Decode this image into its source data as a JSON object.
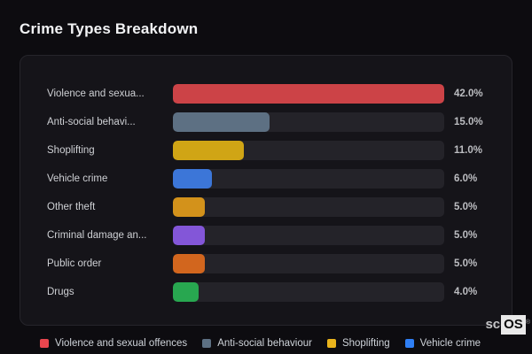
{
  "header": {
    "title": "Crime Types Breakdown"
  },
  "chart_data": {
    "type": "bar",
    "orientation": "horizontal",
    "title": "Crime Types Breakdown",
    "unit": "%",
    "xlim": [
      0,
      42
    ],
    "max_value": 42.0,
    "grid": false,
    "legend_position": "bottom",
    "categories": [
      "Violence and sexua...",
      "Anti-social behavi...",
      "Shoplifting",
      "Vehicle crime",
      "Other theft",
      "Criminal damage an...",
      "Public order",
      "Drugs"
    ],
    "values": [
      42.0,
      15.0,
      11.0,
      6.0,
      5.0,
      5.0,
      5.0,
      4.0
    ],
    "rows": [
      {
        "label": "Violence and sexua...",
        "value": 42.0,
        "display": "42.0%",
        "color": "#cc4347"
      },
      {
        "label": "Anti-social behavi...",
        "value": 15.0,
        "display": "15.0%",
        "color": "#5d7083"
      },
      {
        "label": "Shoplifting",
        "value": 11.0,
        "display": "11.0%",
        "color": "#d0a515"
      },
      {
        "label": "Vehicle crime",
        "value": 6.0,
        "display": "6.0%",
        "color": "#3c76d8"
      },
      {
        "label": "Other theft",
        "value": 5.0,
        "display": "5.0%",
        "color": "#d3921b"
      },
      {
        "label": "Criminal damage an...",
        "value": 5.0,
        "display": "5.0%",
        "color": "#8356d8"
      },
      {
        "label": "Public order",
        "value": 5.0,
        "display": "5.0%",
        "color": "#d2661e"
      },
      {
        "label": "Drugs",
        "value": 4.0,
        "display": "4.0%",
        "color": "#28a750"
      }
    ],
    "legend": [
      {
        "label": "Violence and sexual offences",
        "color": "#e8464e"
      },
      {
        "label": "Anti-social behaviour",
        "color": "#5d7083"
      },
      {
        "label": "Shoplifting",
        "color": "#eab41c"
      },
      {
        "label": "Vehicle crime",
        "color": "#2f7ff5"
      }
    ]
  },
  "watermark": {
    "prefix": "sc",
    "suffix": "OS",
    "reg": "®"
  },
  "theme": {
    "page_bg": "#0d0c10",
    "panel_bg": "#151419",
    "panel_border": "#26252b",
    "track_bg": "#242329",
    "accent_red": "#cc4347"
  }
}
